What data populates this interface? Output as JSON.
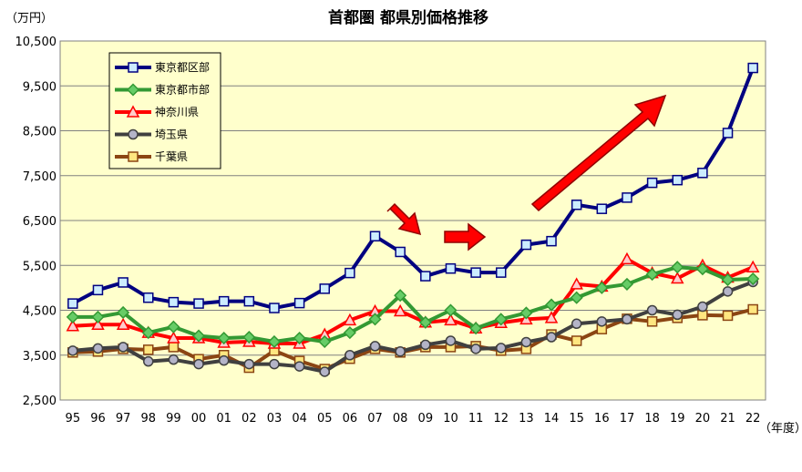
{
  "chart_data": {
    "type": "line",
    "title": "首都圏 都県別価格推移",
    "ylabel": "（万円）",
    "xlabel": "（年度）",
    "ylim": [
      2500,
      10500
    ],
    "yticks": [
      2500,
      3500,
      4500,
      5500,
      6500,
      7500,
      8500,
      9500,
      10500
    ],
    "ytick_labels": [
      "2,500",
      "3,500",
      "4,500",
      "5,500",
      "6,500",
      "7,500",
      "8,500",
      "9,500",
      "10,500"
    ],
    "categories": [
      "95",
      "96",
      "97",
      "98",
      "99",
      "00",
      "01",
      "02",
      "03",
      "04",
      "05",
      "06",
      "07",
      "08",
      "09",
      "10",
      "11",
      "12",
      "13",
      "14",
      "15",
      "16",
      "17",
      "18",
      "19",
      "20",
      "21",
      "22"
    ],
    "grid": "horizontal",
    "legend_position": "top-left",
    "background_color": "#FFFFCC",
    "series": [
      {
        "name": "東京都区部",
        "color": "#000080",
        "marker": "square",
        "marker_fill": "#CCECFF",
        "values": [
          4650,
          4950,
          5120,
          4780,
          4680,
          4650,
          4700,
          4700,
          4550,
          4660,
          4980,
          5330,
          6150,
          5800,
          5260,
          5430,
          5340,
          5340,
          5960,
          6040,
          6850,
          6760,
          7010,
          7340,
          7400,
          7560,
          8450,
          9900
        ]
      },
      {
        "name": "東京都市部",
        "color": "#339933",
        "marker": "diamond",
        "marker_fill": "#66CC66",
        "values": [
          4350,
          4350,
          4450,
          4000,
          4130,
          3930,
          3880,
          3900,
          3800,
          3880,
          3800,
          4000,
          4300,
          4830,
          4230,
          4500,
          4100,
          4300,
          4440,
          4620,
          4780,
          5000,
          5080,
          5300,
          5460,
          5420,
          5180,
          5200
        ]
      },
      {
        "name": "神奈川県",
        "color": "#FF0000",
        "marker": "triangle",
        "marker_fill": "#FFCCCC",
        "values": [
          4150,
          4180,
          4180,
          4000,
          3880,
          3880,
          3780,
          3800,
          3760,
          3760,
          3960,
          4280,
          4480,
          4480,
          4230,
          4280,
          4100,
          4220,
          4300,
          4330,
          5080,
          5030,
          5640,
          5330,
          5210,
          5500,
          5230,
          5460
        ]
      },
      {
        "name": "埼玉県",
        "color": "#404040",
        "marker": "circle",
        "marker_fill": "#B4B4C8",
        "values": [
          3600,
          3650,
          3680,
          3360,
          3400,
          3300,
          3380,
          3300,
          3300,
          3250,
          3130,
          3500,
          3700,
          3580,
          3730,
          3820,
          3640,
          3660,
          3790,
          3900,
          4200,
          4250,
          4300,
          4500,
          4400,
          4580,
          4920,
          5130
        ]
      },
      {
        "name": "千葉県",
        "color": "#8B4513",
        "marker": "square",
        "marker_fill": "#FFE680",
        "values": [
          3560,
          3580,
          3640,
          3620,
          3680,
          3410,
          3500,
          3220,
          3600,
          3370,
          3190,
          3420,
          3640,
          3560,
          3680,
          3680,
          3700,
          3600,
          3640,
          3960,
          3820,
          4080,
          4310,
          4250,
          4330,
          4390,
          4380,
          4520
        ]
      }
    ]
  }
}
